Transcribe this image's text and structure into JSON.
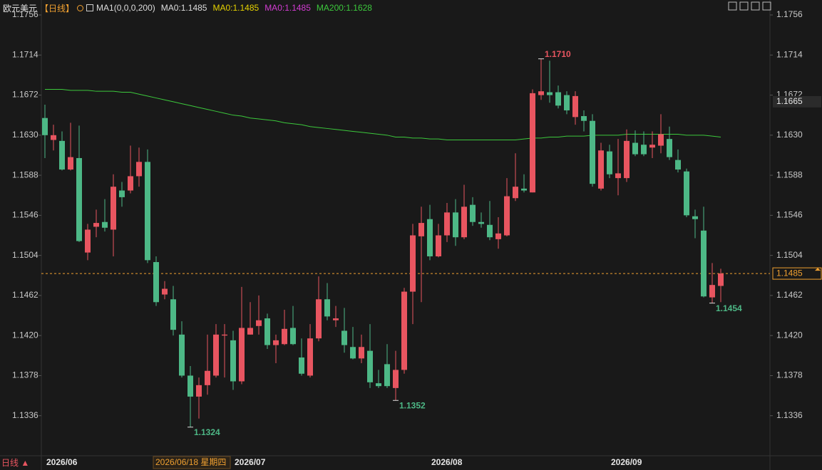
{
  "chart_data": {
    "type": "candlestick",
    "title": "欧元美元",
    "period": "【日线】",
    "legend": [
      {
        "text": "MA1(0,0,0,200)",
        "color": "#dddddd"
      },
      {
        "text": "MA0:1.1485",
        "color": "#dddddd"
      },
      {
        "text": "MA0:1.1485",
        "color": "#e6d200"
      },
      {
        "text": "MA0:1.1485",
        "color": "#d23cd2"
      },
      {
        "text": "MA200:1.1628",
        "color": "#3cc83c"
      }
    ],
    "categories": [
      "2026/06",
      null,
      null,
      null,
      null,
      null,
      null,
      null,
      null,
      null,
      null,
      null,
      null,
      null,
      null,
      null,
      null,
      null,
      null,
      null,
      null,
      null,
      "2026/07",
      null,
      null,
      null,
      null,
      null,
      null,
      null,
      null,
      null,
      null,
      null,
      null,
      null,
      null,
      null,
      null,
      null,
      null,
      null,
      null,
      null,
      null,
      "2026/08",
      null,
      null,
      null,
      null,
      null,
      null,
      null,
      null,
      null,
      null,
      null,
      null,
      null,
      null,
      null,
      null,
      null,
      null,
      null,
      null,
      "2026/09",
      null,
      null,
      null,
      null,
      null,
      null,
      null,
      null,
      null,
      null,
      null,
      null,
      null
    ],
    "open": [
      1.1648,
      1.1625,
      1.1624,
      1.1594,
      1.1606,
      1.1507,
      1.1534,
      1.1539,
      1.1531,
      1.1572,
      1.1572,
      1.1587,
      1.1602,
      1.1497,
      1.1463,
      1.1458,
      1.1421,
      1.1378,
      1.1356,
      1.1368,
      1.1378,
      1.142,
      1.1415,
      1.1372,
      1.1421,
      1.143,
      1.1438,
      1.141,
      1.1411,
      1.1428,
      1.1397,
      1.1378,
      1.1417,
      1.1458,
      1.1436,
      1.1425,
      1.1408,
      1.1396,
      1.1404,
      1.137,
      1.139,
      1.1365,
      1.1384,
      1.1466,
      1.1524,
      1.1542,
      1.1503,
      1.1525,
      1.1549,
      1.1523,
      1.1557,
      1.1539,
      1.1536,
      1.1521,
      1.1525,
      1.1564,
      1.1574,
      1.157,
      1.1672,
      1.1675,
      1.1675,
      1.1672,
      1.1649,
      1.165,
      1.1645,
      1.1574,
      1.1613,
      1.1585,
      1.1585,
      1.1622,
      1.162,
      1.1617,
      1.1619,
      1.1626,
      1.1604,
      1.1592,
      1.1545,
      1.153,
      1.146,
      1.1472
    ],
    "high": [
      1.1662,
      1.1641,
      1.1634,
      1.1643,
      1.164,
      1.1537,
      1.1552,
      1.1563,
      1.1589,
      1.1581,
      1.1619,
      1.1617,
      1.1615,
      1.1503,
      1.1477,
      1.1472,
      1.1435,
      1.1388,
      1.1376,
      1.1421,
      1.1432,
      1.1432,
      1.1425,
      1.1471,
      1.1455,
      1.1462,
      1.1443,
      1.1421,
      1.1447,
      1.1451,
      1.1417,
      1.1432,
      1.1482,
      1.1475,
      1.1451,
      1.1449,
      1.1429,
      1.1421,
      1.1432,
      1.1384,
      1.1411,
      1.1404,
      1.147,
      1.1537,
      1.1555,
      1.1557,
      1.1537,
      1.1559,
      1.1563,
      1.1578,
      1.1565,
      1.1549,
      1.1561,
      1.1544,
      1.1585,
      1.1611,
      1.1589,
      1.1678,
      1.171,
      1.1708,
      1.1682,
      1.1676,
      1.1676,
      1.1656,
      1.1652,
      1.1622,
      1.162,
      1.1626,
      1.1636,
      1.1635,
      1.1634,
      1.1634,
      1.1652,
      1.1639,
      1.1615,
      1.1595,
      1.1552,
      1.1555,
      1.1496,
      1.149
    ],
    "low": [
      1.1606,
      1.1614,
      1.1593,
      1.1593,
      1.1518,
      1.1499,
      1.1523,
      1.1529,
      1.1503,
      1.1555,
      1.1569,
      1.1576,
      1.1496,
      1.1451,
      1.1458,
      1.142,
      1.1376,
      1.1324,
      1.1333,
      1.1358,
      1.1376,
      1.1376,
      1.1363,
      1.1369,
      1.1421,
      1.1421,
      1.1406,
      1.1391,
      1.141,
      1.141,
      1.1378,
      1.1376,
      1.1414,
      1.1436,
      1.1429,
      1.1402,
      1.1395,
      1.1391,
      1.1365,
      1.1365,
      1.1365,
      1.1352,
      1.138,
      1.1432,
      1.1455,
      1.1499,
      1.1502,
      1.1518,
      1.1514,
      1.1521,
      1.1535,
      1.1533,
      1.152,
      1.1511,
      1.1524,
      1.1561,
      1.157,
      1.157,
      1.1667,
      1.1664,
      1.1658,
      1.1652,
      1.1641,
      1.1634,
      1.1576,
      1.1572,
      1.1585,
      1.1567,
      1.1581,
      1.1608,
      1.1608,
      1.1606,
      1.1611,
      1.1604,
      1.1591,
      1.1544,
      1.1522,
      1.146,
      1.1454,
      1.1455
    ],
    "close": [
      1.163,
      1.163,
      1.1594,
      1.1607,
      1.1519,
      1.1531,
      1.1538,
      1.1533,
      1.1576,
      1.1565,
      1.1587,
      1.1602,
      1.1499,
      1.1455,
      1.1469,
      1.1426,
      1.1378,
      1.1356,
      1.1368,
      1.1383,
      1.1421,
      1.1421,
      1.1372,
      1.1428,
      1.1428,
      1.1436,
      1.141,
      1.1415,
      1.1427,
      1.1411,
      1.138,
      1.1417,
      1.1458,
      1.144,
      1.1438,
      1.141,
      1.1396,
      1.1408,
      1.1371,
      1.1367,
      1.1367,
      1.1384,
      1.1466,
      1.1525,
      1.1538,
      1.1503,
      1.1525,
      1.1549,
      1.1523,
      1.1555,
      1.1539,
      1.1537,
      1.1523,
      1.1527,
      1.1566,
      1.1576,
      1.1572,
      1.1674,
      1.1676,
      1.1672,
      1.1661,
      1.1656,
      1.1671,
      1.1645,
      1.1579,
      1.1614,
      1.1589,
      1.159,
      1.1624,
      1.161,
      1.161,
      1.162,
      1.1631,
      1.1607,
      1.1594,
      1.1546,
      1.1542,
      1.1461,
      1.1473,
      1.1485
    ],
    "up_color": "#e85560",
    "down_color": "#4db886",
    "ma200": {
      "color": "#3cc83c",
      "values": [
        1.1678,
        1.1678,
        1.1678,
        1.1677,
        1.1677,
        1.1677,
        1.1676,
        1.1676,
        1.1676,
        1.1675,
        1.1675,
        1.1673,
        1.1671,
        1.1669,
        1.1667,
        1.1665,
        1.1663,
        1.1661,
        1.1659,
        1.1657,
        1.1655,
        1.1653,
        1.1651,
        1.165,
        1.1648,
        1.1647,
        1.1646,
        1.1645,
        1.1643,
        1.1642,
        1.1641,
        1.1639,
        1.1638,
        1.1637,
        1.1636,
        1.1635,
        1.1634,
        1.1633,
        1.1632,
        1.1631,
        1.163,
        1.1628,
        1.1628,
        1.1627,
        1.1627,
        1.1626,
        1.1626,
        1.1625,
        1.1625,
        1.1625,
        1.1625,
        1.1625,
        1.1625,
        1.1625,
        1.1625,
        1.1625,
        1.1626,
        1.1627,
        1.1627,
        1.1628,
        1.1628,
        1.1629,
        1.1629,
        1.1629,
        1.163,
        1.163,
        1.163,
        1.163,
        1.1631,
        1.1631,
        1.1631,
        1.1631,
        1.1631,
        1.1631,
        1.1631,
        1.163,
        1.163,
        1.163,
        1.1629,
        1.1628
      ]
    },
    "ylim": [
      1.1294,
      1.1756
    ],
    "yticks": [
      {
        "value": 1.1756,
        "label": "1.1756"
      },
      {
        "value": 1.1714,
        "label": "1.1714"
      },
      {
        "value": 1.1672,
        "label": "1.1672"
      },
      {
        "value": 1.163,
        "label": "1.1630"
      },
      {
        "value": 1.1588,
        "label": "1.1588"
      },
      {
        "value": 1.1546,
        "label": "1.1546"
      },
      {
        "value": 1.1504,
        "label": "1.1504"
      },
      {
        "value": 1.1462,
        "label": "1.1462"
      },
      {
        "value": 1.142,
        "label": "1.1420"
      },
      {
        "value": 1.1378,
        "label": "1.1378"
      },
      {
        "value": 1.1336,
        "label": "1.1336"
      }
    ],
    "annotations": [
      {
        "value": 1.171,
        "label": "1.1710",
        "color": "#e85560"
      },
      {
        "value": 1.1324,
        "label": "1.1324",
        "color": "#4db886"
      },
      {
        "value": 1.1352,
        "label": "1.1352",
        "color": "#4db886"
      },
      {
        "value": 1.1454,
        "label": "1.1454",
        "color": "#4db886"
      }
    ],
    "current_price": {
      "value": 1.1485,
      "label": "1.1485",
      "color": "#f0a030"
    },
    "crosshair_price": {
      "value": 1.1665,
      "label": "1.1665"
    },
    "crosshair_date": "2026/06/18 星期四",
    "period_tab": "日线 ▲"
  }
}
